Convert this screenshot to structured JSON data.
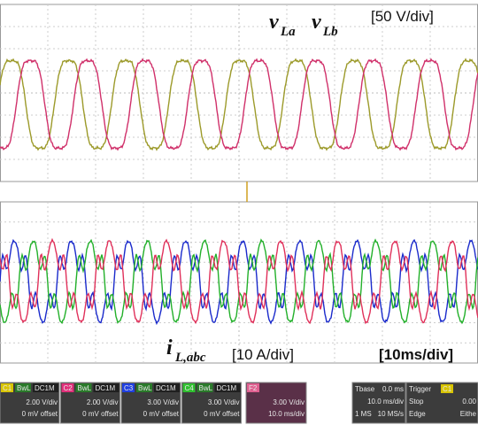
{
  "top_panel": {
    "trace_a": {
      "symbol": "v",
      "subscript": "La"
    },
    "trace_b": {
      "symbol": "v",
      "subscript": "Lb"
    },
    "scale": "[50 V/div]"
  },
  "bottom_panel": {
    "trace": {
      "symbol": "i",
      "subscript": "L,abc"
    },
    "scale": "[10 A/div]",
    "timebase": "[10ms/div]"
  },
  "status_bar": {
    "channels": [
      {
        "tag": "C1",
        "bw": "BwL",
        "coupling": "DC1M",
        "scale": "2.00 V/div",
        "offset": "0 mV offset"
      },
      {
        "tag": "C2",
        "bw": "BwL",
        "coupling": "DC1M",
        "scale": "2.00 V/div",
        "offset": "0 mV offset"
      },
      {
        "tag": "C3",
        "bw": "BwL",
        "coupling": "DC1M",
        "scale": "3.00 V/div",
        "offset": "0 mV offset"
      },
      {
        "tag": "C4",
        "bw": "BwL",
        "coupling": "DC1M",
        "scale": "3.00 V/div",
        "offset": "0 mV offset"
      }
    ],
    "math": {
      "tag": "F2",
      "scale": "3.00 V/div",
      "time": "10.0 ms/div"
    },
    "timebase": {
      "title": "Tbase",
      "delay": "0.0 ms",
      "div": "10.0 ms/div",
      "points": "1 MS",
      "rate": "10 MS/s"
    },
    "trigger": {
      "title": "Trigger",
      "source": "C1",
      "mode": "Stop",
      "type": "Edge",
      "level": "0.00",
      "slope": "Eithe"
    }
  }
}
